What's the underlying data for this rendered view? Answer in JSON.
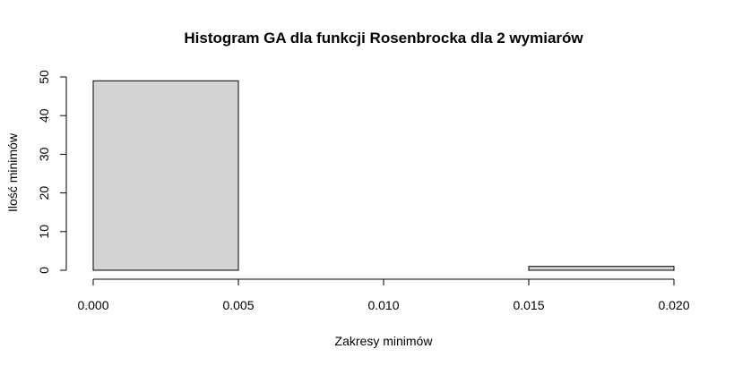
{
  "chart_data": {
    "type": "bar",
    "title": "Histogram GA dla funkcji Rosenbrocka dla 2 wymiarów",
    "xlabel": "Zakresy minimów",
    "ylabel": "Ilość minimów",
    "bins": [
      {
        "from": 0.0,
        "to": 0.005,
        "count": 49
      },
      {
        "from": 0.005,
        "to": 0.01,
        "count": 0
      },
      {
        "from": 0.01,
        "to": 0.015,
        "count": 0
      },
      {
        "from": 0.015,
        "to": 0.02,
        "count": 1
      }
    ],
    "x_ticks": [
      0.0,
      0.005,
      0.01,
      0.015,
      0.02
    ],
    "x_tick_labels": [
      "0.000",
      "0.005",
      "0.010",
      "0.015",
      "0.020"
    ],
    "y_ticks": [
      0,
      10,
      20,
      30,
      40,
      50
    ],
    "y_tick_labels": [
      "0",
      "10",
      "20",
      "30",
      "40",
      "50"
    ],
    "xlim": [
      0.0,
      0.02
    ],
    "ylim": [
      0,
      50
    ],
    "grid": false,
    "legend": "none",
    "colors": {
      "bar_fill": "#d3d3d3",
      "bar_stroke": "#000000",
      "axis": "#000000"
    }
  }
}
